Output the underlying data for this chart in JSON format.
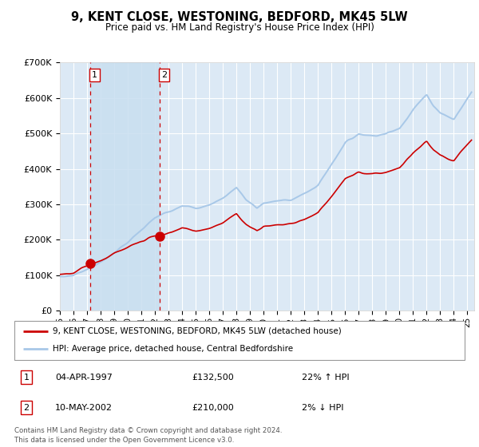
{
  "title": "9, KENT CLOSE, WESTONING, BEDFORD, MK45 5LW",
  "subtitle": "Price paid vs. HM Land Registry's House Price Index (HPI)",
  "plot_bg": "#dce9f5",
  "shade_color": "#c8dff0",
  "ylim": [
    0,
    700000
  ],
  "yticks": [
    0,
    100000,
    200000,
    300000,
    400000,
    500000,
    600000,
    700000
  ],
  "ytick_labels": [
    "£0",
    "£100K",
    "£200K",
    "£300K",
    "£400K",
    "£500K",
    "£600K",
    "£700K"
  ],
  "xlim": [
    1995,
    2025.5
  ],
  "xtick_years": [
    1995,
    1996,
    1997,
    1998,
    1999,
    2000,
    2001,
    2002,
    2003,
    2004,
    2005,
    2006,
    2007,
    2008,
    2009,
    2010,
    2011,
    2012,
    2013,
    2014,
    2015,
    2016,
    2017,
    2018,
    2019,
    2020,
    2021,
    2022,
    2023,
    2024,
    2025
  ],
  "sales": [
    {
      "date_num": 1997.26,
      "price": 132500,
      "label": "1"
    },
    {
      "date_num": 2002.36,
      "price": 210000,
      "label": "2"
    }
  ],
  "sale_details": [
    {
      "num": "1",
      "date": "04-APR-1997",
      "price": "£132,500",
      "hpi": "22% ↑ HPI"
    },
    {
      "num": "2",
      "date": "10-MAY-2002",
      "price": "£210,000",
      "hpi": "2% ↓ HPI"
    }
  ],
  "legend_line1": "9, KENT CLOSE, WESTONING, BEDFORD, MK45 5LW (detached house)",
  "legend_line2": "HPI: Average price, detached house, Central Bedfordshire",
  "footer": "Contains HM Land Registry data © Crown copyright and database right 2024.\nThis data is licensed under the Open Government Licence v3.0.",
  "hpi_color": "#a8c8e8",
  "sale_color": "#cc0000",
  "vline_color": "#cc0000"
}
